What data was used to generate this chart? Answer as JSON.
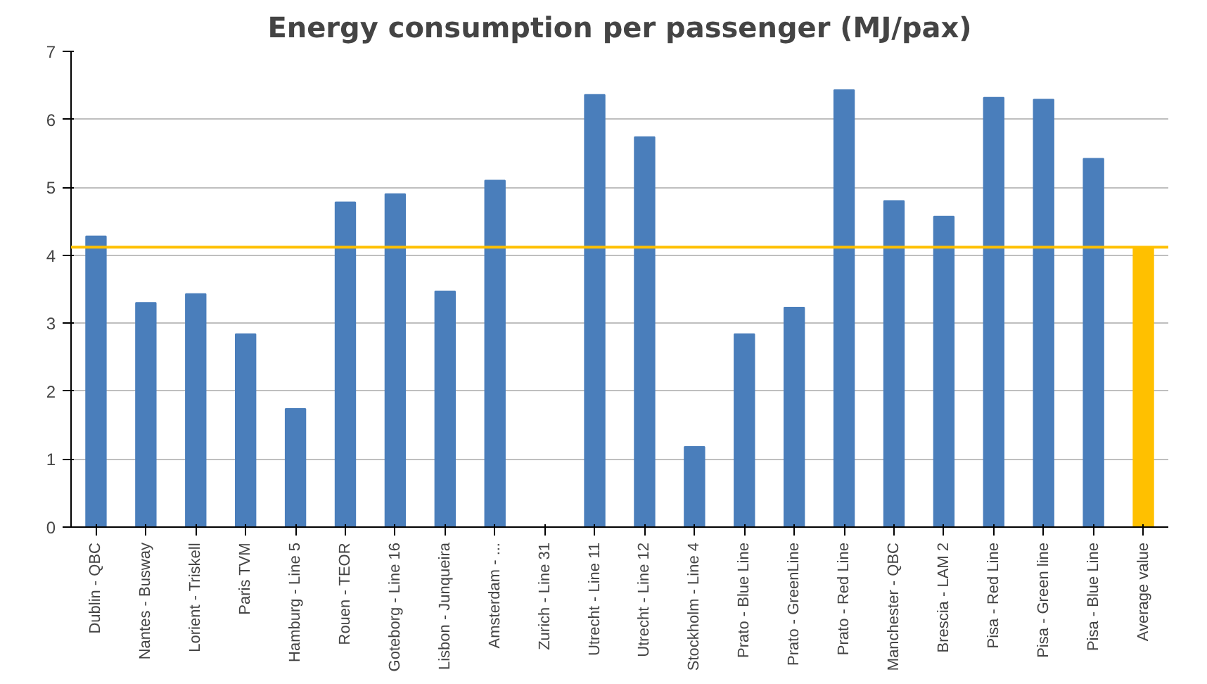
{
  "chart_data": {
    "type": "bar",
    "title": "Energy consumption per passenger (MJ/pax)",
    "categories": [
      "Dublin - QBC",
      "Nantes - Busway",
      "Lorient - Triskell",
      "Paris TVM",
      "Hamburg - Line 5",
      "Rouen - TEOR",
      "Goteborg - Line 16",
      "Lisbon - Junqueira",
      "Amsterdam - ...",
      "Zurich - Line 31",
      "Utrecht - Line 11",
      "Utrecht - Line 12",
      "Stockholm - Line 4",
      "Prato - Blue Line",
      "Prato - GreenLine",
      "Prato - Red Line",
      "Manchester - QBC",
      "Brescia - LAM 2",
      "Pisa - Red Line",
      "Pisa - Green line",
      "Pisa - Blue Line",
      "Average value"
    ],
    "values": [
      4.28,
      3.3,
      3.43,
      2.84,
      1.74,
      4.78,
      4.9,
      3.47,
      5.1,
      null,
      6.36,
      5.74,
      1.18,
      2.84,
      3.23,
      6.43,
      4.8,
      4.57,
      6.32,
      6.29,
      5.42,
      4.12
    ],
    "colors": [
      "#4a7ebb",
      "#4a7ebb",
      "#4a7ebb",
      "#4a7ebb",
      "#4a7ebb",
      "#4a7ebb",
      "#4a7ebb",
      "#4a7ebb",
      "#4a7ebb",
      "#4a7ebb",
      "#4a7ebb",
      "#4a7ebb",
      "#4a7ebb",
      "#4a7ebb",
      "#4a7ebb",
      "#4a7ebb",
      "#4a7ebb",
      "#4a7ebb",
      "#4a7ebb",
      "#4a7ebb",
      "#4a7ebb",
      "#ffc000"
    ],
    "ylim": [
      0,
      7
    ],
    "yticks": [
      0,
      1,
      2,
      3,
      4,
      5,
      6,
      7
    ],
    "grid": "y",
    "ref_lines": [
      {
        "axis": "y",
        "value": 4.12,
        "label": null,
        "color": "#ffc000"
      }
    ]
  }
}
